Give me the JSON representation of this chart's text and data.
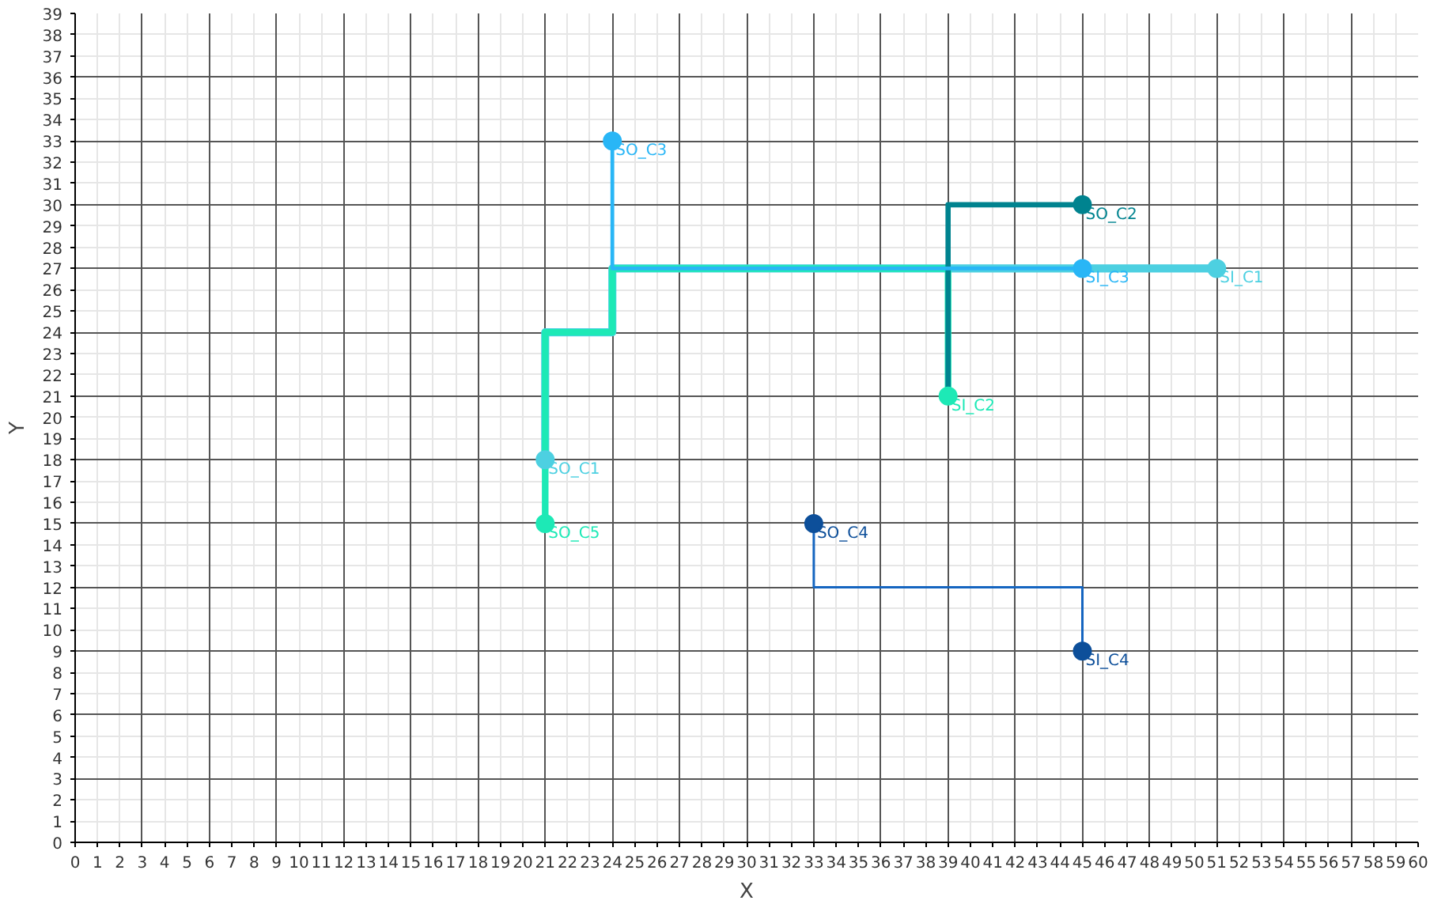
{
  "chart_data": {
    "type": "line",
    "xlabel": "X",
    "ylabel": "Y",
    "xlim": [
      0,
      60
    ],
    "ylim": [
      0,
      39
    ],
    "xticks": [
      0,
      1,
      2,
      3,
      4,
      5,
      6,
      7,
      8,
      9,
      10,
      11,
      12,
      13,
      14,
      15,
      16,
      17,
      18,
      19,
      20,
      21,
      22,
      23,
      24,
      25,
      26,
      27,
      28,
      29,
      30,
      31,
      32,
      33,
      34,
      35,
      36,
      37,
      38,
      39,
      40,
      41,
      42,
      43,
      44,
      45,
      46,
      47,
      48,
      49,
      50,
      51,
      52,
      53,
      54,
      55,
      56,
      57,
      58,
      59,
      60
    ],
    "yticks": [
      0,
      1,
      2,
      3,
      4,
      5,
      6,
      7,
      8,
      9,
      10,
      11,
      12,
      13,
      14,
      15,
      16,
      17,
      18,
      19,
      20,
      21,
      22,
      23,
      24,
      25,
      26,
      27,
      28,
      29,
      30,
      31,
      32,
      33,
      34,
      35,
      36,
      37,
      38,
      39
    ],
    "grid": true,
    "line_style": "solid",
    "series": [
      {
        "color": "#4dd0e1",
        "x": [
          21,
          21,
          24,
          24,
          51
        ],
        "values": [
          18,
          24,
          24,
          27,
          27
        ]
      },
      {
        "color": "#1de9b6",
        "x": [
          21,
          21,
          24,
          24,
          39,
          39
        ],
        "values": [
          15,
          24,
          24,
          27,
          27,
          21
        ]
      },
      {
        "color": "#00838f",
        "x": [
          45,
          39,
          39
        ],
        "values": [
          30,
          30,
          21
        ]
      },
      {
        "color": "#29b6f6",
        "x": [
          24,
          24,
          45
        ],
        "values": [
          33,
          27,
          27
        ]
      },
      {
        "color": "#1565c0",
        "x": [
          33,
          33,
          45,
          45
        ],
        "values": [
          15,
          12,
          12,
          9
        ]
      },
      {
        "type": "scatter",
        "marker": "circle",
        "name": "SO_C1",
        "color": "#4dd0e1",
        "x": [
          21
        ],
        "values": [
          18
        ]
      },
      {
        "type": "scatter",
        "marker": "circle",
        "name": "SO_C5",
        "color": "#1de9b6",
        "x": [
          21
        ],
        "values": [
          15
        ]
      },
      {
        "type": "scatter",
        "marker": "circle",
        "name": "SO_C3",
        "color": "#29b6f6",
        "x": [
          24
        ],
        "values": [
          33
        ]
      },
      {
        "type": "scatter",
        "marker": "circle",
        "name": "SO_C2",
        "color": "#00838f",
        "x": [
          45
        ],
        "values": [
          30
        ]
      },
      {
        "type": "scatter",
        "marker": "circle",
        "name": "SI_C3",
        "color": "#29b6f6",
        "x": [
          45
        ],
        "values": [
          27
        ]
      },
      {
        "type": "scatter",
        "marker": "circle",
        "name": "SI_C1",
        "color": "#4dd0e1",
        "x": [
          51
        ],
        "values": [
          27
        ]
      },
      {
        "type": "scatter",
        "marker": "circle",
        "name": "SI_C2",
        "color": "#1de9b6",
        "x": [
          39
        ],
        "values": [
          21
        ]
      },
      {
        "type": "scatter",
        "marker": "circle",
        "name": "SO_C4",
        "color": "#0d4f9a",
        "x": [
          33
        ],
        "values": [
          15
        ]
      },
      {
        "type": "scatter",
        "marker": "circle",
        "name": "SI_C4",
        "color": "#0d4f9a",
        "x": [
          45
        ],
        "values": [
          9
        ]
      }
    ]
  }
}
